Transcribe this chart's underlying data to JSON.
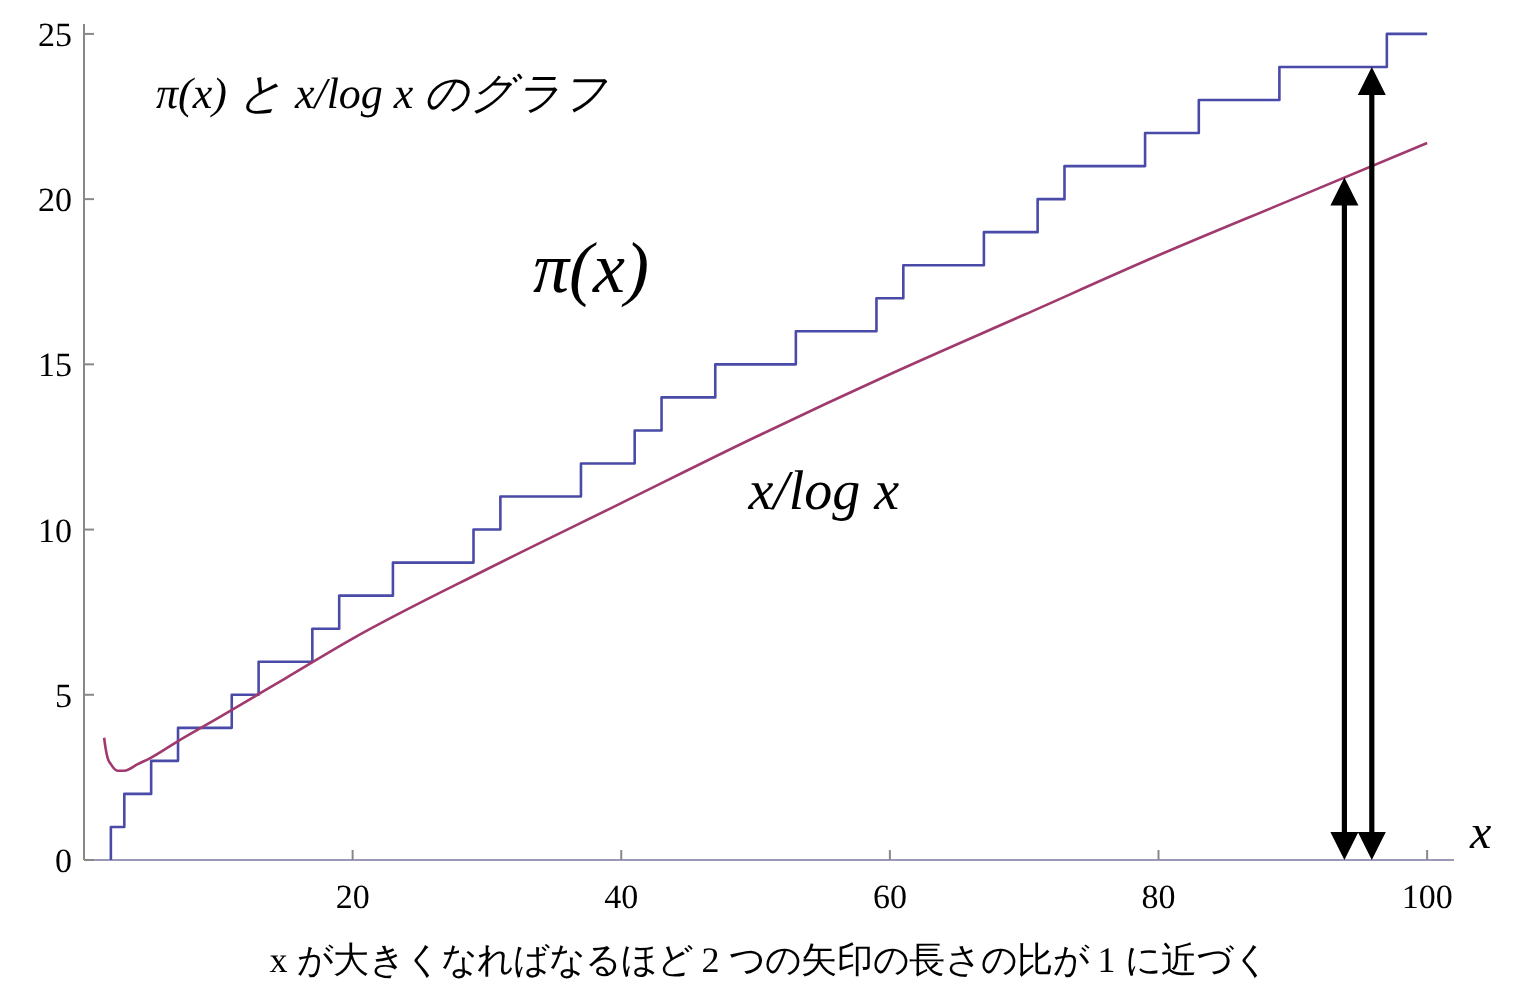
{
  "chart_data": {
    "type": "line",
    "title": "π(x) と x/log x のグラフ",
    "xlabel": "x",
    "annotations": [
      "x が大きくなればなるほど 2 つの矢印の長さの比が 1 に近づく"
    ],
    "xlim": [
      0,
      102
    ],
    "ylim": [
      0,
      25.3
    ],
    "xticks": [
      20,
      40,
      60,
      80,
      100
    ],
    "yticks": [
      0,
      5,
      10,
      15,
      20,
      25
    ],
    "grid": false,
    "legend": false,
    "series": [
      {
        "name": "π(x)",
        "type": "step",
        "color": "#4a4aa8",
        "x": [
          2,
          2,
          3,
          5,
          7,
          11,
          13,
          17,
          19,
          23,
          29,
          31,
          37,
          41,
          43,
          47,
          53,
          59,
          61,
          67,
          71,
          73,
          79,
          83,
          89,
          97,
          100
        ],
        "values": [
          0,
          1,
          2,
          3,
          4,
          5,
          6,
          7,
          8,
          9,
          10,
          11,
          12,
          13,
          14,
          15,
          16,
          17,
          18,
          19,
          20,
          21,
          22,
          23,
          24,
          25,
          25
        ]
      },
      {
        "name": "x/log x",
        "type": "line",
        "color": "#a03a6e",
        "x": [
          1.5,
          1.6,
          1.75,
          2,
          2.5,
          2.718,
          3,
          4,
          5,
          7,
          10,
          15,
          20,
          30,
          40,
          50,
          60,
          70,
          80,
          90,
          100
        ],
        "values": [
          3.7,
          3.4,
          3.1,
          2.9,
          2.7,
          2.7,
          2.7,
          2.9,
          3.1,
          3.6,
          4.3,
          5.5,
          6.7,
          8.8,
          10.8,
          12.8,
          14.7,
          16.5,
          18.3,
          20.0,
          21.7
        ]
      }
    ]
  }
}
